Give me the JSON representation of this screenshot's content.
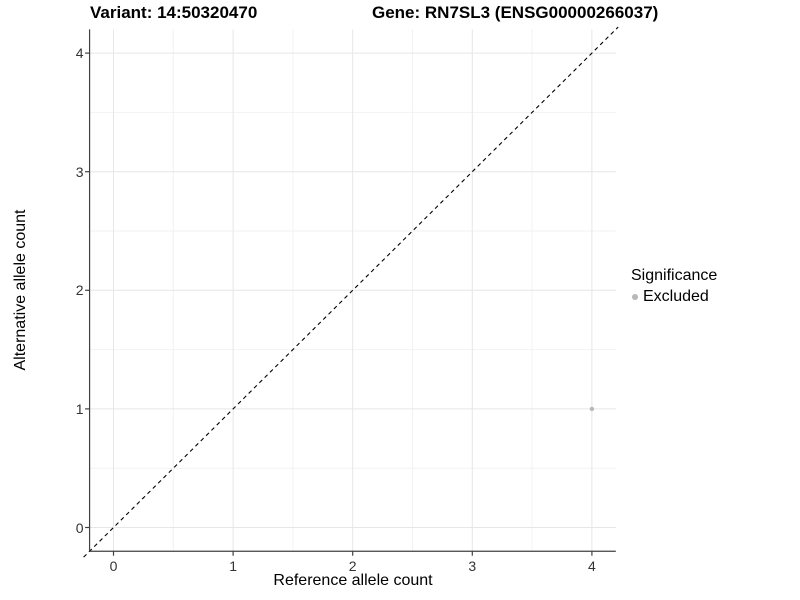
{
  "chart_data": {
    "type": "scatter",
    "titles": {
      "left": "Variant: 14:50320470",
      "right": "Gene: RN7SL3 (ENSG00000266037)"
    },
    "xlabel": "Reference allele count",
    "ylabel": "Alternative allele count",
    "xlim": [
      -0.2,
      4.2
    ],
    "ylim": [
      -0.2,
      4.2
    ],
    "x_ticks": [
      0,
      1,
      2,
      3,
      4
    ],
    "y_ticks": [
      0,
      1,
      2,
      3,
      4
    ],
    "grid": {
      "major": true,
      "minor": true,
      "major_color": "#e6e6e6",
      "minor_color": "#f2f2f2"
    },
    "reference_line": {
      "type": "identity",
      "slope": 1,
      "intercept": 0,
      "style": "dashed",
      "color": "#000000"
    },
    "series": [
      {
        "name": "Excluded",
        "color": "#b8b8b8",
        "marker": "circle",
        "points": [
          {
            "x": 4,
            "y": 1
          }
        ]
      }
    ],
    "legend": {
      "title": "Significance",
      "position": "right",
      "entries": [
        {
          "label": "Excluded",
          "color": "#b8b8b8"
        }
      ]
    }
  },
  "colors": {
    "background": "#ffffff",
    "axis_line": "#404040",
    "tick_label": "#333333"
  }
}
